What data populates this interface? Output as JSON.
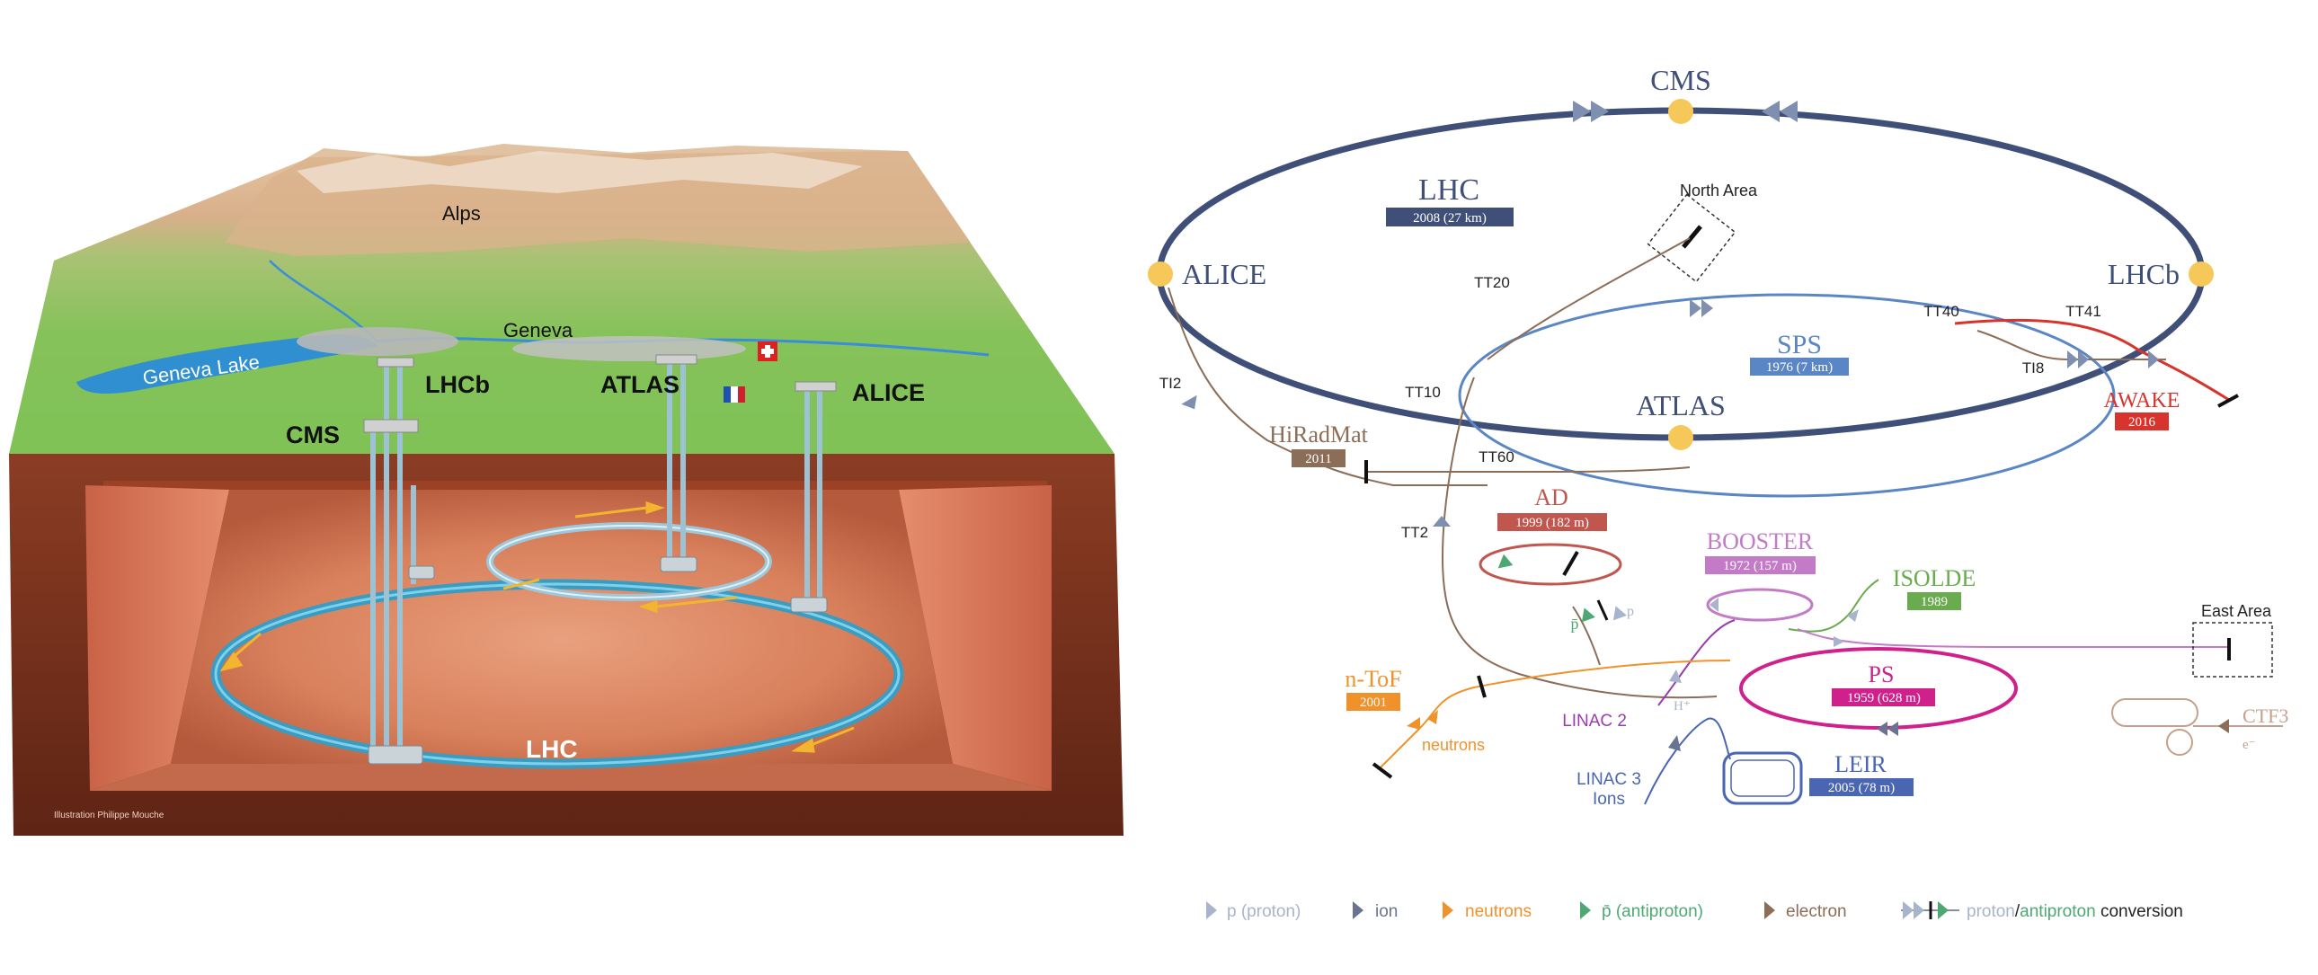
{
  "left_panel": {
    "labels": {
      "alps": "Alps",
      "geneva": "Geneva",
      "geneva_lake": "Geneva Lake",
      "lhcb": "LHCb",
      "atlas": "ATLAS",
      "alice": "ALICE",
      "cms": "CMS",
      "lhc": "LHC",
      "credit": "Illustration Philippe Mouche"
    }
  },
  "right_panel": {
    "rings": {
      "lhc": {
        "name": "LHC",
        "info": "2008 (27 km)"
      },
      "sps": {
        "name": "SPS",
        "info": "1976 (7 km)"
      },
      "ps": {
        "name": "PS",
        "info": "1959 (628 m)"
      },
      "booster": {
        "name": "BOOSTER",
        "info": "1972 (157 m)"
      },
      "ad": {
        "name": "AD",
        "info": "1999 (182 m)"
      },
      "leir": {
        "name": "LEIR",
        "info": "2005 (78 m)"
      }
    },
    "experiments": {
      "cms": "CMS",
      "alice": "ALICE",
      "lhcb": "LHCb",
      "atlas": "ATLAS"
    },
    "facilities": {
      "north_area": "North Area",
      "east_area": "East Area",
      "hiradmat": {
        "name": "HiRadMat",
        "year": "2011"
      },
      "awake": {
        "name": "AWAKE",
        "year": "2016"
      },
      "isolde": {
        "name": "ISOLDE",
        "year": "1989"
      },
      "ntof": {
        "name": "n-ToF",
        "year": "2001"
      },
      "ctf3": "CTF3",
      "ctf3_particle": "e⁻",
      "neutrons": "neutrons",
      "linac2": "LINAC 2",
      "linac3": "LINAC 3",
      "linac3_ions": "Ions",
      "hplus": "H⁺",
      "pbar": "p̄",
      "p": "p"
    },
    "transfer_lines": {
      "tt20": "TT20",
      "tt40": "TT40",
      "tt41": "TT41",
      "ti8": "TI8",
      "ti2": "TI2",
      "tt10": "TT10",
      "tt60": "TT60",
      "tt2": "TT2"
    },
    "legend": {
      "proton": "p (proton)",
      "ion": "ion",
      "neutrons": "neutrons",
      "antiproton": "p̄ (antiproton)",
      "electron": "electron",
      "conv_proton": "proton",
      "conv_slash": "/",
      "conv_antiproton": "antiproton",
      "conv_suffix": " conversion"
    }
  },
  "colors": {
    "lhc": "#3f4f78",
    "sps": "#5b86c5",
    "ps": "#d0208c",
    "booster": "#c37bc7",
    "ad": "#c0574f",
    "leir": "#4a66b3",
    "isolde": "#6aab4f",
    "ntof": "#f0922b",
    "awake": "#d8342e",
    "hiradmat": "#8c6d57",
    "ctf3": "#c6a08a",
    "experiment_dot": "#f6c85a",
    "proton": "#a8b4cc",
    "ion": "#6b7392",
    "antiproton": "#4ea874",
    "electron": "#8c6d57"
  }
}
